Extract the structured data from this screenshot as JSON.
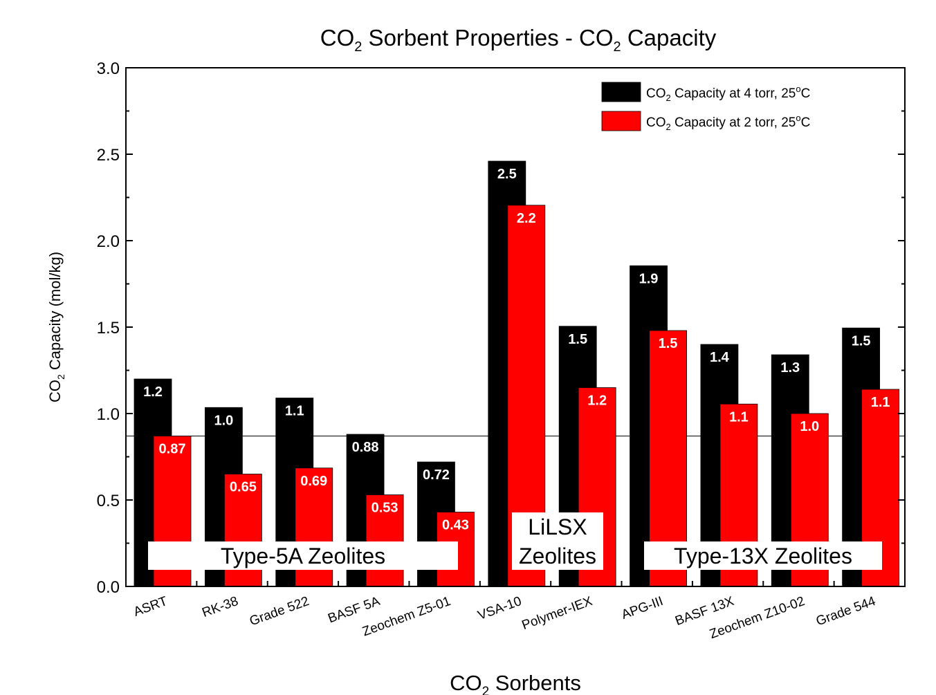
{
  "chart_data": {
    "type": "bar",
    "title": {
      "main": "CO",
      "sub": "2",
      "rest": " Sorbent Properties - CO",
      "sub2": "2",
      "end": " Capacity"
    },
    "xlabel": {
      "main": "CO",
      "sub": "2",
      "rest": " Sorbents"
    },
    "ylabel": {
      "main": "CO",
      "sub": "2",
      "rest": " Capacity (mol/kg)"
    },
    "ylim": [
      0,
      3.0
    ],
    "yticks": [
      "0.0",
      "0.5",
      "1.0",
      "1.5",
      "2.0",
      "2.5",
      "3.0"
    ],
    "reference_line": 0.87,
    "categories": [
      "ASRT",
      "RK-38",
      "Grade 522",
      "BASF 5A",
      "Zeochem Z5-01",
      "VSA-10",
      "Polymer-IEX",
      "APG-III",
      "BASF 13X",
      "Zeochem Z10-02",
      "Grade 544"
    ],
    "series": [
      {
        "legend": {
          "main": "CO",
          "sub": "2",
          "rest": " Capacity at 4 torr, 25",
          "sup": "o",
          "end": "C"
        },
        "color": "#000000",
        "values": [
          1.2,
          1.035,
          1.09,
          0.88,
          0.72,
          2.46,
          1.505,
          1.855,
          1.4,
          1.34,
          1.495
        ],
        "labels": [
          "1.2",
          "1.0",
          "1.1",
          "0.88",
          "0.72",
          "2.5",
          "1.5",
          "1.9",
          "1.4",
          "1.3",
          "1.5"
        ]
      },
      {
        "legend": {
          "main": "CO",
          "sub": "2",
          "rest": " Capacity at 2 torr, 25",
          "sup": "o",
          "end": "C"
        },
        "color": "#ff0000",
        "values": [
          0.87,
          0.65,
          0.685,
          0.53,
          0.43,
          2.205,
          1.15,
          1.48,
          1.055,
          1.0,
          1.14
        ],
        "labels": [
          "0.87",
          "0.65",
          "0.69",
          "0.53",
          "0.43",
          "2.2",
          "1.2",
          "1.5",
          "1.1",
          "1.0",
          "1.1"
        ]
      }
    ],
    "groups": [
      {
        "lines": [
          "Type-5A Zeolites"
        ]
      },
      {
        "lines": [
          "LiLSX",
          "Zeolites"
        ]
      },
      {
        "lines": [
          "Type-13X Zeolites"
        ]
      }
    ]
  }
}
